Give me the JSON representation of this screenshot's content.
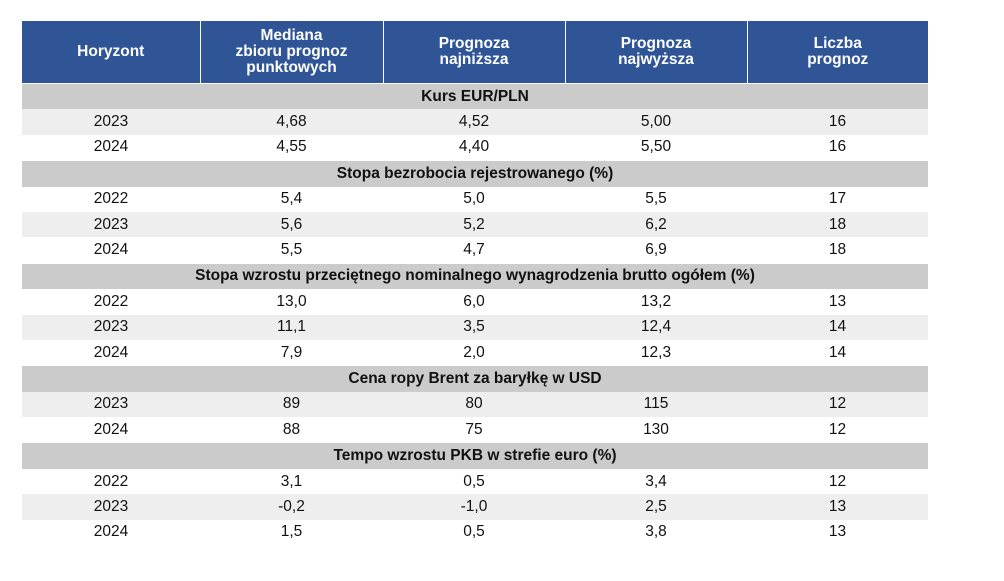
{
  "table": {
    "header": [
      [
        "Horyzont"
      ],
      [
        "Mediana",
        "zbioru prognoz",
        "punktowych"
      ],
      [
        "Prognoza",
        "najniższa"
      ],
      [
        "Prognoza",
        "najwyższa"
      ],
      [
        "Liczba",
        "prognoz"
      ]
    ],
    "sections": [
      {
        "title": "Kurs EUR/PLN",
        "rows": [
          [
            "2023",
            "4,68",
            "4,52",
            "5,00",
            "16"
          ],
          [
            "2024",
            "4,55",
            "4,40",
            "5,50",
            "16"
          ]
        ]
      },
      {
        "title": "Stopa bezrobocia rejestrowanego (%)",
        "rows": [
          [
            "2022",
            "5,4",
            "5,0",
            "5,5",
            "17"
          ],
          [
            "2023",
            "5,6",
            "5,2",
            "6,2",
            "18"
          ],
          [
            "2024",
            "5,5",
            "4,7",
            "6,9",
            "18"
          ]
        ]
      },
      {
        "title": "Stopa wzrostu przeciętnego nominalnego wynagrodzenia brutto ogółem (%)",
        "rows": [
          [
            "2022",
            "13,0",
            "6,0",
            "13,2",
            "13"
          ],
          [
            "2023",
            "11,1",
            "3,5",
            "12,4",
            "14"
          ],
          [
            "2024",
            "7,9",
            "2,0",
            "12,3",
            "14"
          ]
        ]
      },
      {
        "title": "Cena ropy Brent za baryłkę w USD",
        "rows": [
          [
            "2023",
            "89",
            "80",
            "115",
            "12"
          ],
          [
            "2024",
            "88",
            "75",
            "130",
            "12"
          ]
        ]
      },
      {
        "title": "Tempo wzrostu PKB w strefie euro (%)",
        "rows": [
          [
            "2022",
            "3,1",
            "0,5",
            "3,4",
            "12"
          ],
          [
            "2023",
            "-0,2",
            "-1,0",
            "2,5",
            "13"
          ],
          [
            "2024",
            "1,5",
            "0,5",
            "3,8",
            "13"
          ]
        ]
      }
    ]
  }
}
